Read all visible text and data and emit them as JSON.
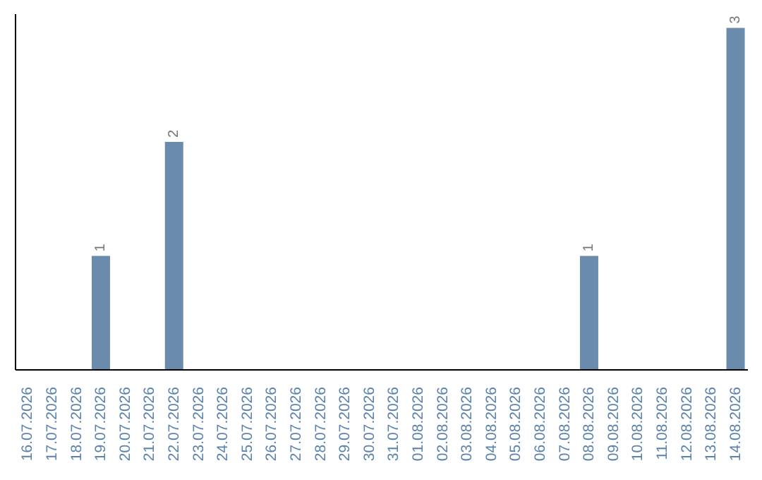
{
  "chart_data": {
    "type": "bar",
    "categories": [
      "16.07.2026",
      "17.07.2026",
      "18.07.2026",
      "19.07.2026",
      "20.07.2026",
      "21.07.2026",
      "22.07.2026",
      "23.07.2026",
      "24.07.2026",
      "25.07.2026",
      "26.07.2026",
      "27.07.2026",
      "28.07.2026",
      "29.07.2026",
      "30.07.2026",
      "31.07.2026",
      "01.08.2026",
      "02.08.2026",
      "03.08.2026",
      "04.08.2026",
      "05.08.2026",
      "06.08.2026",
      "07.08.2026",
      "08.08.2026",
      "09.08.2026",
      "10.08.2026",
      "11.08.2026",
      "12.08.2026",
      "13.08.2026",
      "14.08.2026"
    ],
    "values": [
      0,
      0,
      0,
      1,
      0,
      0,
      2,
      0,
      0,
      0,
      0,
      0,
      0,
      0,
      0,
      0,
      0,
      0,
      0,
      0,
      0,
      0,
      0,
      1,
      0,
      0,
      0,
      0,
      0,
      3
    ],
    "value_labels": [
      null,
      null,
      null,
      "1",
      null,
      null,
      "2",
      null,
      null,
      null,
      null,
      null,
      null,
      null,
      null,
      null,
      null,
      null,
      null,
      null,
      null,
      null,
      null,
      "1",
      null,
      null,
      null,
      null,
      null,
      "3"
    ],
    "color": "#6a8bab",
    "grid": false,
    "legend": false
  }
}
